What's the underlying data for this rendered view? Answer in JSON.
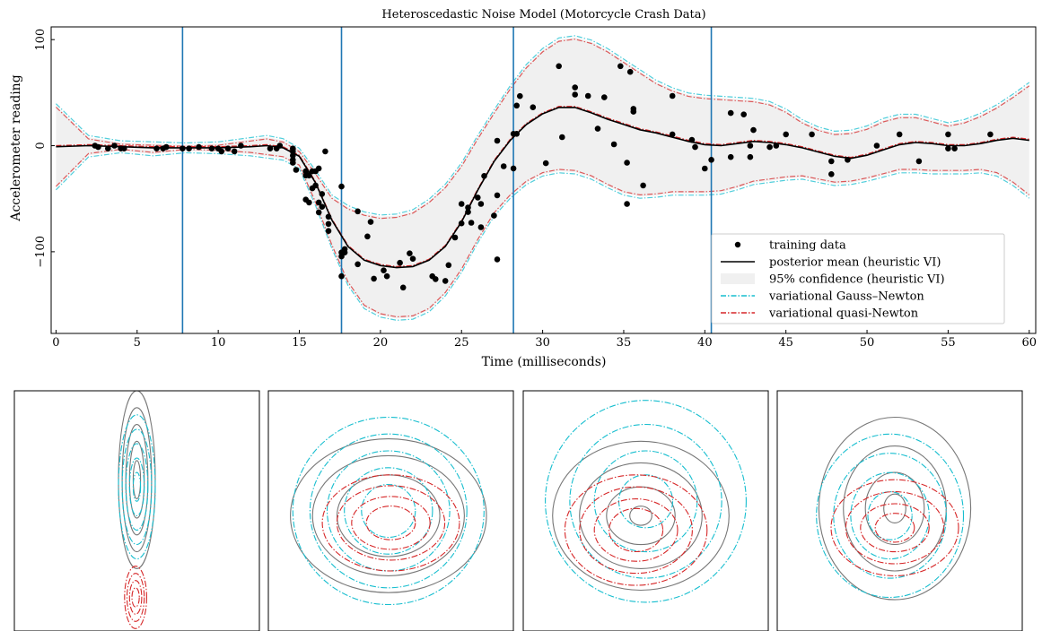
{
  "chart_data": [
    {
      "type": "scatter",
      "title": "Heteroscedastic Noise Model (Motorcycle Crash Data)",
      "xlabel": "Time (milliseconds)",
      "ylabel": "Accelerometer reading",
      "xlim": [
        -0.3,
        60.4
      ],
      "ylim": [
        -177,
        112
      ],
      "x_ticks": [
        0,
        5,
        10,
        15,
        20,
        25,
        30,
        35,
        40,
        45,
        50,
        55,
        60
      ],
      "y_ticks": [
        -100,
        0,
        100
      ],
      "x_tick_labels": [
        "0",
        "5",
        "10",
        "15",
        "20",
        "25",
        "30",
        "35",
        "40",
        "45",
        "50",
        "55",
        "60"
      ],
      "y_tick_labels": [
        "−100",
        "0",
        "100"
      ],
      "grid": false,
      "legend_position": "bottom-right",
      "vertical_lines": [
        7.8,
        17.6,
        28.2,
        40.4
      ],
      "legend": [
        {
          "label": "training data",
          "style": "dot"
        },
        {
          "label": "posterior mean (heuristic VI)",
          "style": "solid"
        },
        {
          "label": "95% confidence (heuristic VI)",
          "style": "band"
        },
        {
          "label": "variational Gauss–Newton",
          "style": "dashdot-cyan"
        },
        {
          "label": "variational quasi-Newton",
          "style": "dashdot-red"
        }
      ],
      "training_data": {
        "x": [
          2.4,
          2.6,
          3.2,
          3.6,
          4.0,
          4.2,
          6.2,
          6.6,
          6.8,
          7.8,
          8.2,
          8.8,
          9.6,
          10.0,
          10.2,
          10.6,
          11.0,
          11.4,
          13.2,
          13.6,
          13.8,
          14.6,
          14.6,
          14.6,
          14.6,
          14.6,
          14.6,
          14.8,
          15.4,
          15.4,
          15.4,
          15.6,
          15.6,
          15.8,
          15.8,
          16.0,
          16.0,
          16.2,
          16.2,
          16.2,
          16.4,
          16.4,
          16.6,
          16.8,
          16.8,
          16.8,
          17.6,
          17.6,
          17.6,
          17.6,
          17.8,
          17.8,
          18.6,
          18.6,
          19.2,
          19.4,
          19.6,
          20.2,
          20.4,
          21.2,
          21.4,
          21.8,
          22.0,
          23.2,
          23.4,
          24.0,
          24.2,
          24.6,
          25.0,
          25.0,
          25.4,
          25.4,
          25.6,
          26.0,
          26.2,
          26.2,
          26.4,
          27.0,
          27.2,
          27.2,
          27.2,
          27.6,
          28.2,
          28.2,
          28.4,
          28.4,
          28.6,
          29.4,
          30.2,
          31.0,
          31.2,
          32.0,
          32.0,
          32.8,
          33.4,
          33.8,
          34.4,
          34.8,
          35.2,
          35.2,
          35.4,
          35.6,
          35.6,
          36.2,
          38.0,
          38.0,
          39.2,
          39.4,
          40.0,
          40.4,
          41.6,
          41.6,
          42.4,
          42.8,
          42.8,
          43.0,
          44.0,
          44.4,
          45.0,
          46.6,
          47.8,
          47.8,
          48.8,
          50.6,
          52.0,
          53.2,
          55.0,
          55.0,
          55.4,
          57.6
        ],
        "y": [
          0.0,
          -1.3,
          -2.7,
          0.0,
          -2.7,
          -2.7,
          -2.7,
          -2.7,
          -1.3,
          -2.7,
          -2.7,
          -1.3,
          -2.7,
          -2.7,
          -5.4,
          -2.7,
          -5.4,
          0.0,
          -2.7,
          -2.7,
          0.0,
          -13.3,
          -2.7,
          -5.4,
          -5.4,
          -9.3,
          -16.0,
          -22.8,
          -28.1,
          -24.1,
          -50.8,
          -53.5,
          -28.1,
          -24.1,
          -40.2,
          -37.5,
          -24.1,
          -21.4,
          -53.5,
          -62.8,
          -45.5,
          -57.6,
          -5.4,
          -80.4,
          -73.7,
          -67.0,
          -38.5,
          -100.7,
          -123.1,
          -104.4,
          -97.5,
          -100.7,
          -61.9,
          -111.8,
          -85.6,
          -71.9,
          -125.4,
          -117.6,
          -123.1,
          -110.4,
          -133.7,
          -101.5,
          -106.6,
          -123.1,
          -125.8,
          -127.5,
          -112.6,
          -86.6,
          -73.2,
          -54.9,
          -62.6,
          -58.3,
          -72.6,
          -48.9,
          -54.9,
          -76.9,
          -28.5,
          -66.0,
          -107.2,
          4.7,
          -46.8,
          -19.4,
          -21.4,
          11.2,
          37.8,
          11.2,
          46.8,
          36.2,
          -16.5,
          75.0,
          8.1,
          54.9,
          48.2,
          46.9,
          16.0,
          45.6,
          1.3,
          75.0,
          -16.0,
          -54.9,
          69.6,
          34.8,
          32.1,
          -37.5,
          46.9,
          10.7,
          5.4,
          -1.3,
          -21.5,
          -13.3,
          30.8,
          -10.7,
          29.4,
          0.0,
          -10.7,
          14.7,
          -1.3,
          0.0,
          10.7,
          10.7,
          -26.8,
          -14.7,
          -13.3,
          0.0,
          10.7,
          -14.7,
          -2.7,
          10.7,
          -2.7,
          10.7
        ]
      },
      "mean": {
        "x": [
          0,
          2,
          4,
          6,
          8,
          10,
          12,
          13,
          14,
          15,
          16,
          17,
          18,
          19,
          20,
          21,
          22,
          23,
          24,
          25,
          26,
          27,
          28,
          29,
          30,
          31,
          32,
          33,
          34,
          35,
          36,
          37,
          38,
          39,
          40,
          41,
          42,
          43,
          44,
          45,
          46,
          47,
          48,
          49,
          50,
          51,
          52,
          53,
          54,
          55,
          56,
          57,
          58,
          59,
          60
        ],
        "y": [
          -1,
          0,
          -1,
          -2,
          -2,
          -2,
          -1,
          0,
          -2,
          -10,
          -35,
          -70,
          -95,
          -108,
          -113,
          -115,
          -114,
          -108,
          -95,
          -72,
          -42,
          -15,
          5,
          20,
          30,
          36,
          36,
          31,
          25,
          20,
          15,
          12,
          8,
          4,
          1,
          0,
          2,
          4,
          3,
          1,
          -2,
          -6,
          -10,
          -12,
          -9,
          -4,
          1,
          3,
          2,
          0,
          0,
          2,
          5,
          7,
          5
        ]
      },
      "band_upper": {
        "x": [
          0,
          2,
          4,
          6,
          8,
          10,
          12,
          13,
          14,
          15,
          16,
          17,
          18,
          19,
          20,
          21,
          22,
          23,
          24,
          25,
          26,
          27,
          28,
          29,
          30,
          31,
          32,
          33,
          34,
          35,
          36,
          37,
          38,
          39,
          40,
          41,
          42,
          43,
          44,
          45,
          46,
          47,
          48,
          49,
          50,
          51,
          52,
          53,
          54,
          55,
          56,
          57,
          58,
          59,
          60
        ],
        "y": [
          38,
          8,
          3,
          2,
          1,
          2,
          6,
          8,
          5,
          -4,
          -25,
          -48,
          -58,
          -64,
          -67,
          -66,
          -62,
          -52,
          -38,
          -18,
          8,
          32,
          55,
          75,
          90,
          100,
          102,
          98,
          90,
          80,
          70,
          60,
          53,
          48,
          46,
          45,
          44,
          43,
          40,
          33,
          23,
          16,
          12,
          13,
          17,
          24,
          28,
          28,
          24,
          20,
          23,
          29,
          37,
          47,
          58
        ]
      },
      "band_lower": {
        "x": [
          0,
          2,
          4,
          6,
          8,
          10,
          12,
          13,
          14,
          15,
          16,
          17,
          18,
          19,
          20,
          21,
          22,
          23,
          24,
          25,
          26,
          27,
          28,
          29,
          30,
          31,
          32,
          33,
          34,
          35,
          36,
          37,
          38,
          39,
          40,
          41,
          42,
          43,
          44,
          45,
          46,
          47,
          48,
          49,
          50,
          51,
          52,
          53,
          54,
          55,
          56,
          57,
          58,
          59,
          60
        ],
        "y": [
          -40,
          -9,
          -5,
          -8,
          -5,
          -6,
          -8,
          -10,
          -12,
          -20,
          -55,
          -95,
          -130,
          -152,
          -160,
          -163,
          -162,
          -155,
          -140,
          -118,
          -90,
          -65,
          -48,
          -35,
          -27,
          -24,
          -25,
          -30,
          -38,
          -45,
          -48,
          -47,
          -45,
          -45,
          -45,
          -44,
          -40,
          -35,
          -33,
          -31,
          -30,
          -33,
          -36,
          -35,
          -32,
          -28,
          -24,
          -24,
          -25,
          -25,
          -25,
          -24,
          -27,
          -36,
          -48
        ]
      }
    },
    {
      "type": "contour",
      "panel": 1,
      "gray": [
        {
          "cx": 0.5,
          "cy": 0.37,
          "rx": 0.075,
          "ry": 0.37
        },
        {
          "cx": 0.5,
          "cy": 0.37,
          "rx": 0.06,
          "ry": 0.3
        },
        {
          "cx": 0.5,
          "cy": 0.37,
          "rx": 0.045,
          "ry": 0.23
        },
        {
          "cx": 0.5,
          "cy": 0.37,
          "rx": 0.03,
          "ry": 0.16
        },
        {
          "cx": 0.5,
          "cy": 0.37,
          "rx": 0.015,
          "ry": 0.08
        }
      ],
      "cyan": [
        {
          "cx": 0.5,
          "cy": 0.4,
          "rx": 0.075,
          "ry": 0.3
        },
        {
          "cx": 0.5,
          "cy": 0.4,
          "rx": 0.06,
          "ry": 0.24
        },
        {
          "cx": 0.5,
          "cy": 0.4,
          "rx": 0.045,
          "ry": 0.18
        },
        {
          "cx": 0.5,
          "cy": 0.4,
          "rx": 0.03,
          "ry": 0.12
        },
        {
          "cx": 0.5,
          "cy": 0.4,
          "rx": 0.015,
          "ry": 0.06
        }
      ],
      "red": [
        {
          "cx": 0.495,
          "cy": 0.86,
          "rx": 0.045,
          "ry": 0.13
        },
        {
          "cx": 0.495,
          "cy": 0.86,
          "rx": 0.035,
          "ry": 0.1
        },
        {
          "cx": 0.495,
          "cy": 0.86,
          "rx": 0.025,
          "ry": 0.07
        },
        {
          "cx": 0.495,
          "cy": 0.86,
          "rx": 0.015,
          "ry": 0.04
        }
      ]
    },
    {
      "type": "contour",
      "panel": 2,
      "gray": [
        {
          "cx": 0.49,
          "cy": 0.52,
          "rx": 0.4,
          "ry": 0.32
        },
        {
          "cx": 0.49,
          "cy": 0.52,
          "rx": 0.31,
          "ry": 0.25
        },
        {
          "cx": 0.49,
          "cy": 0.52,
          "rx": 0.21,
          "ry": 0.17
        }
      ],
      "cyan": [
        {
          "cx": 0.49,
          "cy": 0.5,
          "rx": 0.39,
          "ry": 0.39
        },
        {
          "cx": 0.49,
          "cy": 0.5,
          "rx": 0.32,
          "ry": 0.32
        },
        {
          "cx": 0.49,
          "cy": 0.5,
          "rx": 0.25,
          "ry": 0.25
        },
        {
          "cx": 0.49,
          "cy": 0.5,
          "rx": 0.18,
          "ry": 0.18
        },
        {
          "cx": 0.49,
          "cy": 0.5,
          "rx": 0.11,
          "ry": 0.11
        }
      ],
      "red": [
        {
          "cx": 0.5,
          "cy": 0.55,
          "rx": 0.28,
          "ry": 0.2
        },
        {
          "cx": 0.5,
          "cy": 0.55,
          "rx": 0.22,
          "ry": 0.155
        },
        {
          "cx": 0.5,
          "cy": 0.55,
          "rx": 0.16,
          "ry": 0.11
        },
        {
          "cx": 0.5,
          "cy": 0.55,
          "rx": 0.1,
          "ry": 0.07
        }
      ]
    },
    {
      "type": "contour",
      "panel": 3,
      "gray": [
        {
          "cx": 0.48,
          "cy": 0.52,
          "rx": 0.36,
          "ry": 0.31
        },
        {
          "cx": 0.48,
          "cy": 0.52,
          "rx": 0.25,
          "ry": 0.22
        },
        {
          "cx": 0.48,
          "cy": 0.52,
          "rx": 0.14,
          "ry": 0.12
        },
        {
          "cx": 0.48,
          "cy": 0.52,
          "rx": 0.045,
          "ry": 0.04
        }
      ],
      "cyan": [
        {
          "cx": 0.5,
          "cy": 0.46,
          "rx": 0.41,
          "ry": 0.42
        },
        {
          "cx": 0.5,
          "cy": 0.46,
          "rx": 0.31,
          "ry": 0.32
        },
        {
          "cx": 0.5,
          "cy": 0.46,
          "rx": 0.21,
          "ry": 0.21
        },
        {
          "cx": 0.5,
          "cy": 0.46,
          "rx": 0.11,
          "ry": 0.11
        }
      ],
      "red": [
        {
          "cx": 0.46,
          "cy": 0.58,
          "rx": 0.29,
          "ry": 0.23
        },
        {
          "cx": 0.46,
          "cy": 0.58,
          "rx": 0.23,
          "ry": 0.18
        },
        {
          "cx": 0.46,
          "cy": 0.58,
          "rx": 0.17,
          "ry": 0.13
        },
        {
          "cx": 0.46,
          "cy": 0.58,
          "rx": 0.11,
          "ry": 0.09
        }
      ]
    },
    {
      "type": "contour",
      "panel": 4,
      "gray": [
        {
          "cx": 0.48,
          "cy": 0.49,
          "rx": 0.31,
          "ry": 0.38
        },
        {
          "cx": 0.48,
          "cy": 0.49,
          "rx": 0.21,
          "ry": 0.26
        },
        {
          "cx": 0.48,
          "cy": 0.49,
          "rx": 0.12,
          "ry": 0.15
        },
        {
          "cx": 0.48,
          "cy": 0.49,
          "rx": 0.045,
          "ry": 0.06
        }
      ],
      "cyan": [
        {
          "cx": 0.46,
          "cy": 0.52,
          "rx": 0.3,
          "ry": 0.34
        },
        {
          "cx": 0.46,
          "cy": 0.52,
          "rx": 0.23,
          "ry": 0.26
        },
        {
          "cx": 0.46,
          "cy": 0.52,
          "rx": 0.16,
          "ry": 0.18
        },
        {
          "cx": 0.46,
          "cy": 0.52,
          "rx": 0.09,
          "ry": 0.1
        }
      ],
      "red": [
        {
          "cx": 0.48,
          "cy": 0.57,
          "rx": 0.26,
          "ry": 0.2
        },
        {
          "cx": 0.48,
          "cy": 0.57,
          "rx": 0.2,
          "ry": 0.15
        },
        {
          "cx": 0.48,
          "cy": 0.57,
          "rx": 0.14,
          "ry": 0.1
        },
        {
          "cx": 0.48,
          "cy": 0.57,
          "rx": 0.08,
          "ry": 0.06
        }
      ]
    }
  ],
  "colors": {
    "data": "#000000",
    "mean": "#000000",
    "band": "#f0f0f0",
    "gauss_newton": "#17becf",
    "quasi_newton": "#d62728",
    "vline": "#1f77b4",
    "contour_gray": "#777777"
  }
}
